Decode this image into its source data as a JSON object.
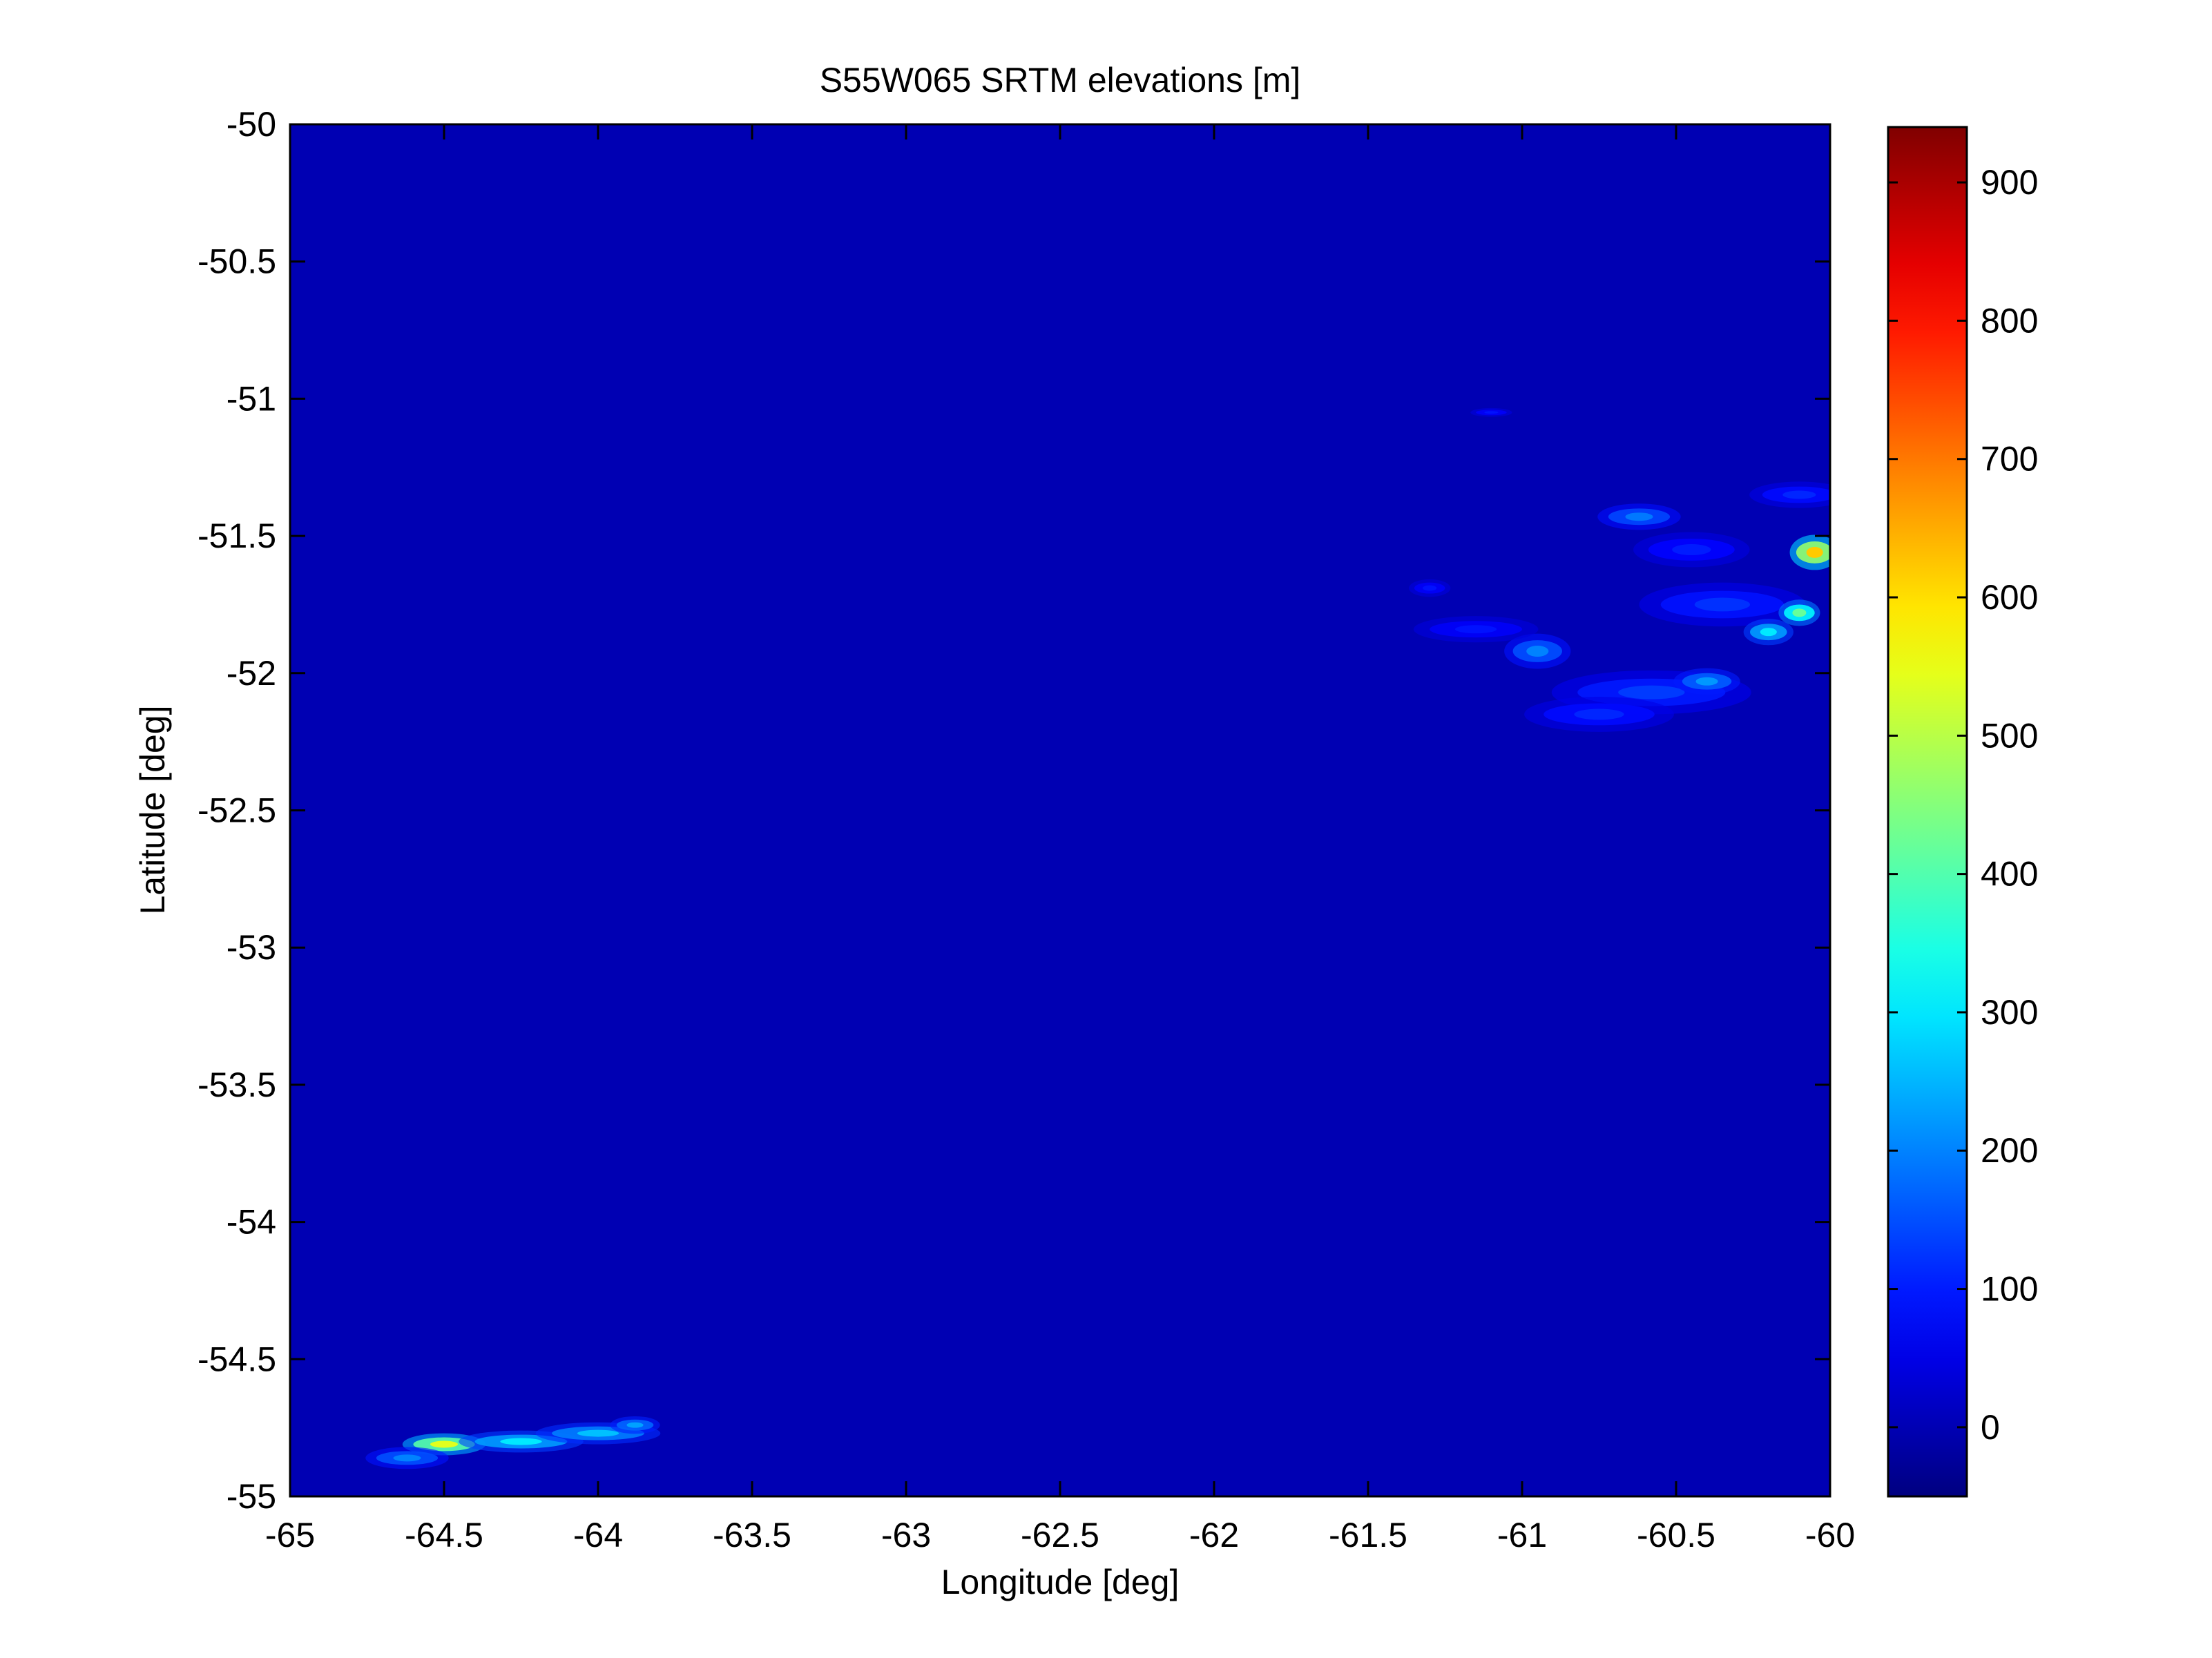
{
  "chart_data": {
    "type": "heatmap",
    "title": "S55W065 SRTM elevations [m]",
    "xlabel": "Longitude [deg]",
    "ylabel": "Latitude [deg]",
    "xlim": [
      -65,
      -60
    ],
    "ylim": [
      -55,
      -50
    ],
    "x_ticks": [
      -65,
      -64.5,
      -64,
      -63.5,
      -63,
      -62.5,
      -62,
      -61.5,
      -61,
      -60.5,
      -60
    ],
    "x_tick_labels": [
      "-65",
      "-64.5",
      "-64",
      "-63.5",
      "-63",
      "-62.5",
      "-62",
      "-61.5",
      "-61",
      "-60.5",
      "-60"
    ],
    "y_ticks": [
      -50,
      -50.5,
      -51,
      -51.5,
      -52,
      -52.5,
      -53,
      -53.5,
      -54,
      -54.5,
      -55
    ],
    "y_tick_labels": [
      "-50",
      "-50.5",
      "-51",
      "-51.5",
      "-52",
      "-52.5",
      "-53",
      "-53.5",
      "-54",
      "-54.5",
      "-55"
    ],
    "colormap": "jet",
    "background_value": 0,
    "colorbar": {
      "range": [
        -50,
        940
      ],
      "ticks": [
        0,
        100,
        200,
        300,
        400,
        500,
        600,
        700,
        800,
        900
      ],
      "tick_labels": [
        "0",
        "100",
        "200",
        "300",
        "400",
        "500",
        "600",
        "700",
        "800",
        "900"
      ]
    },
    "features": [
      {
        "lon": -60.58,
        "lat": -52.07,
        "rx": 0.24,
        "ry": 0.05,
        "value": 130
      },
      {
        "lon": -60.95,
        "lat": -51.92,
        "rx": 0.08,
        "ry": 0.04,
        "value": 200
      },
      {
        "lon": -61.15,
        "lat": -51.84,
        "rx": 0.15,
        "ry": 0.03,
        "value": 90
      },
      {
        "lon": -60.35,
        "lat": -51.75,
        "rx": 0.2,
        "ry": 0.05,
        "value": 120
      },
      {
        "lon": -60.62,
        "lat": -51.43,
        "rx": 0.1,
        "ry": 0.03,
        "value": 190
      },
      {
        "lon": -60.05,
        "lat": -51.56,
        "rx": 0.06,
        "ry": 0.04,
        "value": 620
      },
      {
        "lon": -60.1,
        "lat": -51.78,
        "rx": 0.05,
        "ry": 0.03,
        "value": 420
      },
      {
        "lon": -60.2,
        "lat": -51.85,
        "rx": 0.06,
        "ry": 0.03,
        "value": 300
      },
      {
        "lon": -60.1,
        "lat": -51.35,
        "rx": 0.12,
        "ry": 0.03,
        "value": 110
      },
      {
        "lon": -60.45,
        "lat": -51.55,
        "rx": 0.14,
        "ry": 0.04,
        "value": 100
      },
      {
        "lon": -60.75,
        "lat": -52.15,
        "rx": 0.18,
        "ry": 0.04,
        "value": 110
      },
      {
        "lon": -60.4,
        "lat": -52.03,
        "rx": 0.08,
        "ry": 0.03,
        "value": 220
      },
      {
        "lon": -61.1,
        "lat": -51.05,
        "rx": 0.05,
        "ry": 0.01,
        "value": 90
      },
      {
        "lon": -61.3,
        "lat": -51.69,
        "rx": 0.05,
        "ry": 0.02,
        "value": 90
      },
      {
        "lon": -64.5,
        "lat": -54.81,
        "rx": 0.1,
        "ry": 0.025,
        "value": 540
      },
      {
        "lon": -64.25,
        "lat": -54.8,
        "rx": 0.15,
        "ry": 0.025,
        "value": 300
      },
      {
        "lon": -64.0,
        "lat": -54.77,
        "rx": 0.15,
        "ry": 0.025,
        "value": 260
      },
      {
        "lon": -64.62,
        "lat": -54.86,
        "rx": 0.1,
        "ry": 0.025,
        "value": 200
      },
      {
        "lon": -63.88,
        "lat": -54.74,
        "rx": 0.06,
        "ry": 0.02,
        "value": 230
      }
    ]
  }
}
